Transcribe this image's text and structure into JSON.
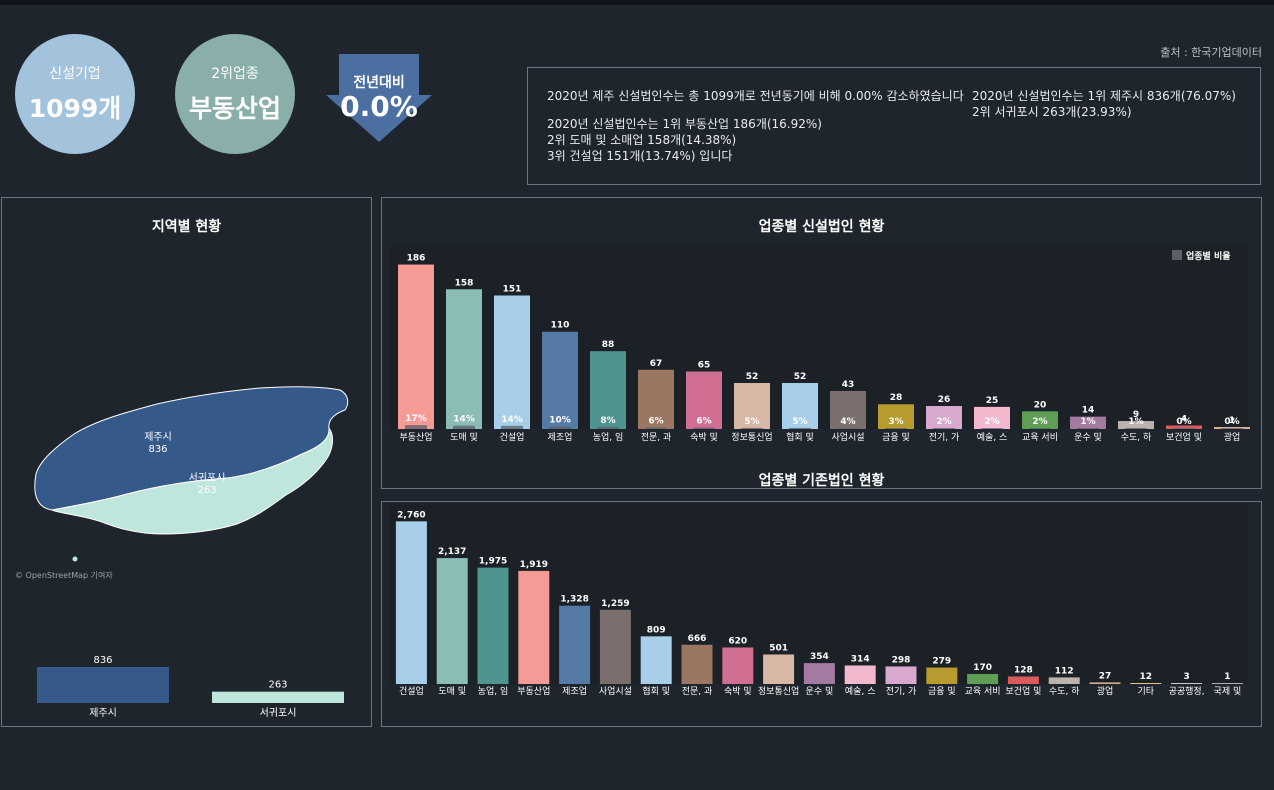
{
  "kpis": {
    "new_companies": {
      "label": "신설기업",
      "value": "1099개"
    },
    "second_industry": {
      "label": "2위업종",
      "value": "부동산업"
    },
    "yoy": {
      "label": "전년대비",
      "value": "0.0%"
    }
  },
  "source": "출처 : 한국기업데이터",
  "summary": {
    "line1": "2020년 제주 신설법인수는 총 1099개로 전년동기에 비해 0.00% 감소하였습니다",
    "line2": "2020년 신설법인수는 1위 부동산업 186개(16.92%)",
    "line3": "2위 도매 및 소매업 158개(14.38%)",
    "line4": "3위 건설업 151개(13.74%) 입니다",
    "right1": "2020년 신설법인수는 1위 제주시 836개(76.07%)",
    "right2": "2위 서귀포시 263개(23.93%)"
  },
  "region": {
    "title": "지역별 현황",
    "attribution": "© OpenStreetMap 기여자",
    "map_labels": [
      {
        "name": "제주시",
        "value": "836"
      },
      {
        "name": "서귀포시",
        "value": "263"
      }
    ],
    "bars": [
      {
        "name": "제주시",
        "value": 836,
        "label": "836",
        "color": "#355a89"
      },
      {
        "name": "서귀포시",
        "value": 263,
        "label": "263",
        "color": "#bfe6dc"
      }
    ]
  },
  "chart_data": [
    {
      "type": "bar",
      "title": "업종별 신설법인 현황",
      "legend": "업종별 비율",
      "categories": [
        "부동산업",
        "도매 및",
        "건설업",
        "제조업",
        "농업, 임",
        "전문, 과",
        "숙박 및",
        "정보통신업",
        "협회 및",
        "사업시설",
        "금융 및",
        "전기, 가",
        "예술, 스",
        "교육 서비",
        "운수 및",
        "수도, 하",
        "보건업 및",
        "광업"
      ],
      "values": [
        186,
        158,
        151,
        110,
        88,
        67,
        65,
        52,
        52,
        43,
        28,
        26,
        25,
        20,
        14,
        9,
        4,
        1
      ],
      "value_labels": [
        "186",
        "158",
        "151",
        "110",
        "88",
        "67",
        "65",
        "52",
        "52",
        "43",
        "28",
        "26",
        "25",
        "20",
        "14",
        "9",
        "4",
        "1"
      ],
      "ratio_labels": [
        "17%",
        "14%",
        "14%",
        "10%",
        "8%",
        "6%",
        "6%",
        "5%",
        "5%",
        "4%",
        "3%",
        "2%",
        "2%",
        "2%",
        "1%",
        "1%",
        "0%",
        "0%"
      ],
      "ratios": [
        16.92,
        14.38,
        13.74,
        10.01,
        8.01,
        6.1,
        5.91,
        4.73,
        4.73,
        3.91,
        2.55,
        2.37,
        2.27,
        1.82,
        1.27,
        0.82,
        0.36,
        0.09
      ],
      "colors": [
        "#f59b96",
        "#8bbdb7",
        "#a7cfe9",
        "#557aa6",
        "#4e958f",
        "#9b7660",
        "#d06f91",
        "#d9b7a6",
        "#a7cfe9",
        "#7a6f6d",
        "#b79b2e",
        "#d8a8cf",
        "#f2b8cd",
        "#5e9f55",
        "#a57aa0",
        "#bcb3ae",
        "#d95b5b",
        "#d9b08f"
      ],
      "ratio_color": "#5a5f68",
      "ymax": 190
    },
    {
      "type": "bar",
      "title": "업종별 기존법인 현황",
      "categories": [
        "건설업",
        "도매 및",
        "농업, 임",
        "부동산업",
        "제조업",
        "사업시설",
        "협회 및",
        "전문, 과",
        "숙박 및",
        "정보통신업",
        "운수 및",
        "예술, 스",
        "전기, 가",
        "금융 및",
        "교육 서비",
        "보건업 및",
        "수도, 하",
        "광업",
        "기타",
        "공공행정,",
        "국제 및"
      ],
      "values": [
        2760,
        2137,
        1975,
        1919,
        1328,
        1259,
        809,
        666,
        620,
        501,
        354,
        314,
        298,
        279,
        170,
        128,
        112,
        27,
        12,
        3,
        1
      ],
      "value_labels": [
        "2,760",
        "2,137",
        "1,975",
        "1,919",
        "1,328",
        "1,259",
        "809",
        "666",
        "620",
        "501",
        "354",
        "314",
        "298",
        "279",
        "170",
        "128",
        "112",
        "27",
        "12",
        "3",
        "1"
      ],
      "colors": [
        "#a7cfe9",
        "#8bbdb7",
        "#4e958f",
        "#f59b96",
        "#557aa6",
        "#7a6f6d",
        "#a7cfe9",
        "#9b7660",
        "#d06f91",
        "#d9b7a6",
        "#a57aa0",
        "#f2b8cd",
        "#d8a8cf",
        "#b79b2e",
        "#5e9f55",
        "#d95b5b",
        "#bcb3ae",
        "#d9b08f",
        "#e0c48a",
        "#c9c9c9",
        "#b0b0b0"
      ],
      "ymax": 2800
    }
  ]
}
